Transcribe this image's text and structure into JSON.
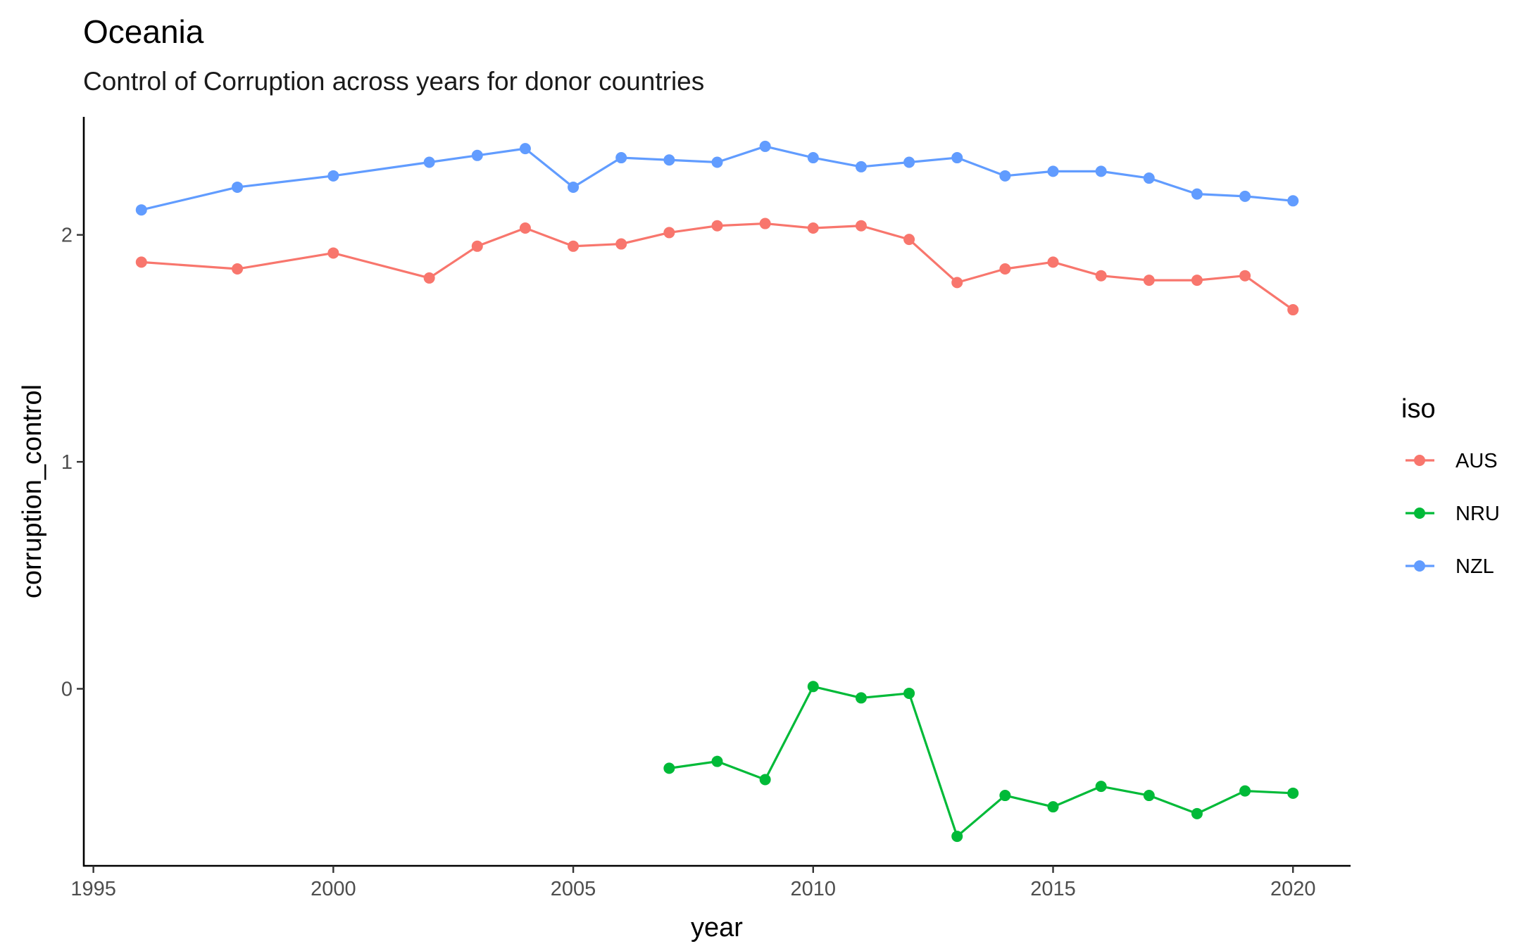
{
  "chart_data": {
    "type": "line",
    "title": "Oceania",
    "subtitle": "Control of Corruption across years for donor countries",
    "xlabel": "year",
    "ylabel": "corruption_control",
    "xlim": [
      1994.8,
      2021.2
    ],
    "ylim": [
      -0.78,
      2.52
    ],
    "x_ticks": [
      1995,
      2000,
      2005,
      2010,
      2015,
      2020
    ],
    "y_ticks": [
      0,
      1,
      2
    ],
    "grid": false,
    "legend": {
      "title": "iso",
      "position": "right"
    },
    "series": [
      {
        "name": "AUS",
        "color": "#F8766D",
        "points": [
          [
            1996,
            1.88
          ],
          [
            1998,
            1.85
          ],
          [
            2000,
            1.92
          ],
          [
            2002,
            1.81
          ],
          [
            2003,
            1.95
          ],
          [
            2004,
            2.03
          ],
          [
            2005,
            1.95
          ],
          [
            2006,
            1.96
          ],
          [
            2007,
            2.01
          ],
          [
            2008,
            2.04
          ],
          [
            2009,
            2.05
          ],
          [
            2010,
            2.03
          ],
          [
            2011,
            2.04
          ],
          [
            2012,
            1.98
          ],
          [
            2013,
            1.79
          ],
          [
            2014,
            1.85
          ],
          [
            2015,
            1.88
          ],
          [
            2016,
            1.82
          ],
          [
            2017,
            1.8
          ],
          [
            2018,
            1.8
          ],
          [
            2019,
            1.82
          ],
          [
            2020,
            1.67
          ]
        ]
      },
      {
        "name": "NRU",
        "color": "#00BA38",
        "points": [
          [
            2007,
            -0.35
          ],
          [
            2008,
            -0.32
          ],
          [
            2009,
            -0.4
          ],
          [
            2010,
            0.01
          ],
          [
            2011,
            -0.04
          ],
          [
            2012,
            -0.02
          ],
          [
            2013,
            -0.65
          ],
          [
            2014,
            -0.47
          ],
          [
            2015,
            -0.52
          ],
          [
            2016,
            -0.43
          ],
          [
            2017,
            -0.47
          ],
          [
            2018,
            -0.55
          ],
          [
            2019,
            -0.45
          ],
          [
            2020,
            -0.46
          ]
        ]
      },
      {
        "name": "NZL",
        "color": "#619CFF",
        "points": [
          [
            1996,
            2.11
          ],
          [
            1998,
            2.21
          ],
          [
            2000,
            2.26
          ],
          [
            2002,
            2.32
          ],
          [
            2003,
            2.35
          ],
          [
            2004,
            2.38
          ],
          [
            2005,
            2.21
          ],
          [
            2006,
            2.34
          ],
          [
            2007,
            2.33
          ],
          [
            2008,
            2.32
          ],
          [
            2009,
            2.39
          ],
          [
            2010,
            2.34
          ],
          [
            2011,
            2.3
          ],
          [
            2012,
            2.32
          ],
          [
            2013,
            2.34
          ],
          [
            2014,
            2.26
          ],
          [
            2015,
            2.28
          ],
          [
            2016,
            2.28
          ],
          [
            2017,
            2.25
          ],
          [
            2018,
            2.18
          ],
          [
            2019,
            2.17
          ],
          [
            2020,
            2.15
          ]
        ]
      }
    ]
  }
}
